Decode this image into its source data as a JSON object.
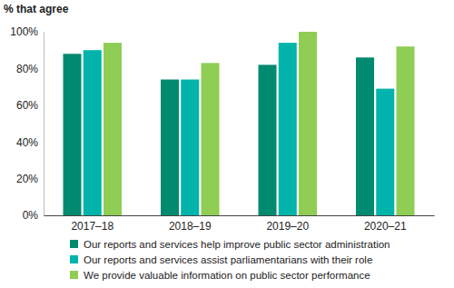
{
  "chart_data": {
    "type": "bar",
    "y_label": "% that agree",
    "categories": [
      "2017–18",
      "2018–19",
      "2019–20",
      "2020–21"
    ],
    "series": [
      {
        "name": "Our reports and services help improve public sector administration",
        "color": "#008a70",
        "values": [
          88,
          74,
          82,
          86
        ]
      },
      {
        "name": "Our reports and services assist parliamentarians with their role",
        "color": "#00b4ab",
        "values": [
          90,
          74,
          94,
          69
        ]
      },
      {
        "name": "We provide valuable information on public sector performance",
        "color": "#8fcd55",
        "values": [
          94,
          83,
          100,
          92
        ]
      }
    ],
    "ylim": [
      0,
      100
    ],
    "yticks": [
      {
        "value": 0,
        "label": "0%"
      },
      {
        "value": 20,
        "label": "20%"
      },
      {
        "value": 40,
        "label": "40%"
      },
      {
        "value": 60,
        "label": "60%"
      },
      {
        "value": 80,
        "label": "80%"
      },
      {
        "value": 100,
        "label": "100%"
      }
    ],
    "grid": false,
    "legend": "bottom"
  }
}
